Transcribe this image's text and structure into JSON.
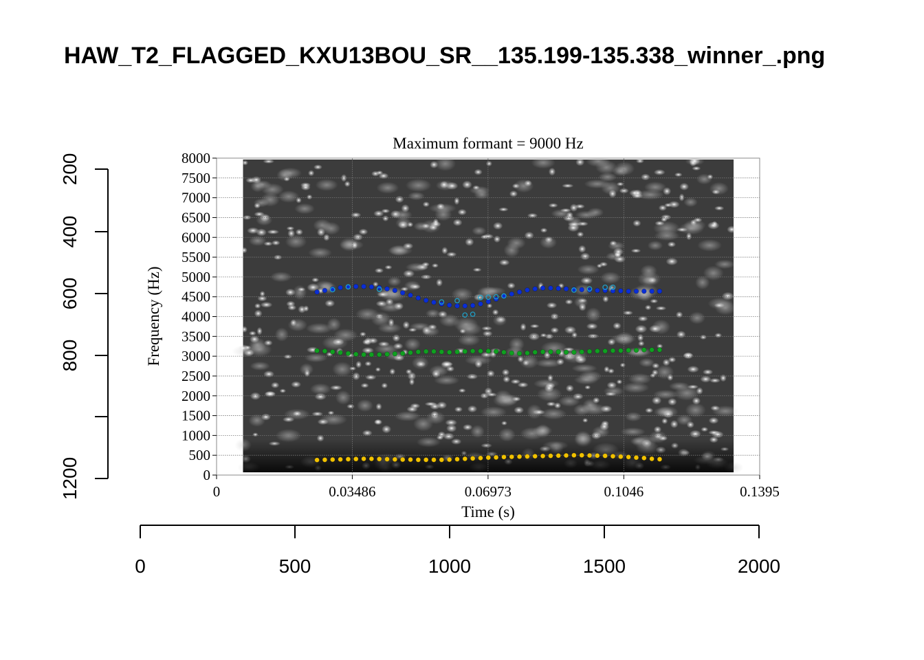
{
  "page": {
    "title": "HAW_T2_FLAGGED_KXU13BOU_SR__135.199-135.338_winner_.png"
  },
  "outer_axes": {
    "x_ticks": [
      "0",
      "500",
      "1000",
      "1500",
      "2000"
    ],
    "y_ticks": [
      "200",
      "400",
      "600",
      "800",
      "1200"
    ]
  },
  "chart_data": {
    "type": "scatter",
    "title": "Maximum formant = 9000 Hz",
    "xlabel": "Time (s)",
    "ylabel": "Frequency (Hz)",
    "xlim": [
      0,
      0.1395
    ],
    "ylim": [
      0,
      8000
    ],
    "x_ticks": [
      "0",
      "0.03486",
      "0.06973",
      "0.1046",
      "0.1395"
    ],
    "y_ticks": [
      "0",
      "500",
      "1000",
      "1500",
      "2000",
      "2500",
      "3000",
      "3500",
      "4000",
      "4500",
      "5000",
      "5500",
      "6000",
      "6500",
      "7000",
      "7500",
      "8000"
    ],
    "grid": true,
    "background": "spectrogram (grayscale)",
    "spectrogram_time_range": [
      0.0068,
      0.1328
    ],
    "series": [
      {
        "color": "#0a2ed6",
        "x": [
          0.0258,
          0.0278,
          0.0298,
          0.0318,
          0.0338,
          0.0358,
          0.0378,
          0.0398,
          0.0418,
          0.0438,
          0.0458,
          0.0478,
          0.0498,
          0.0518,
          0.0538,
          0.0558,
          0.0578,
          0.0598,
          0.0618,
          0.0638,
          0.0658,
          0.0678,
          0.0698,
          0.0718,
          0.0738,
          0.0758,
          0.0778,
          0.0798,
          0.0818,
          0.0838,
          0.0858,
          0.0878,
          0.0898,
          0.0918,
          0.0938,
          0.0958,
          0.0978,
          0.0998,
          0.1018,
          0.1038,
          0.1058,
          0.1078,
          0.1098,
          0.1118,
          0.1138
        ],
        "y": [
          4620,
          4660,
          4700,
          4730,
          4750,
          4760,
          4760,
          4750,
          4730,
          4700,
          4660,
          4600,
          4540,
          4470,
          4410,
          4360,
          4320,
          4290,
          4270,
          4270,
          4280,
          4320,
          4380,
          4440,
          4510,
          4570,
          4620,
          4670,
          4700,
          4720,
          4720,
          4710,
          4700,
          4690,
          4680,
          4670,
          4660,
          4660,
          4650,
          4650,
          4640,
          4640,
          4640,
          4640,
          4640
        ]
      },
      {
        "color": "#1fa0c8",
        "x": [
          0.0298,
          0.0338,
          0.0418,
          0.0578,
          0.0618,
          0.0638,
          0.0658,
          0.0678,
          0.0698,
          0.0718,
          0.0738,
          0.0918,
          0.0958,
          0.0998,
          0.1018
        ],
        "y": [
          4680,
          4750,
          4690,
          4370,
          4400,
          4040,
          4060,
          4480,
          4490,
          4500,
          4520,
          4670,
          4700,
          4740,
          4740
        ]
      },
      {
        "color": "#0fa020",
        "x": [
          0.0258,
          0.0278,
          0.0298,
          0.0318,
          0.0338,
          0.0358,
          0.0378,
          0.0398,
          0.0418,
          0.0438,
          0.0458,
          0.0478,
          0.0498,
          0.0518,
          0.0538,
          0.0558,
          0.0578,
          0.0598,
          0.0618,
          0.0638,
          0.0658,
          0.0678,
          0.0698,
          0.0718,
          0.0738,
          0.0758,
          0.0778,
          0.0798,
          0.0818,
          0.0838,
          0.0858,
          0.0878,
          0.0898,
          0.0918,
          0.0938,
          0.0958,
          0.0978,
          0.0998,
          0.1018,
          0.1038,
          0.1058,
          0.1078,
          0.1098,
          0.1118,
          0.1138
        ],
        "y": [
          3140,
          3130,
          3110,
          3090,
          3070,
          3050,
          3040,
          3040,
          3040,
          3050,
          3060,
          3070,
          3090,
          3110,
          3120,
          3120,
          3110,
          3100,
          3110,
          3120,
          3130,
          3130,
          3130,
          3120,
          3100,
          3080,
          3070,
          3080,
          3100,
          3110,
          3110,
          3110,
          3100,
          3100,
          3110,
          3120,
          3130,
          3130,
          3140,
          3140,
          3150,
          3150,
          3160,
          3160,
          3160
        ]
      },
      {
        "color": "#f2c200",
        "x": [
          0.0258,
          0.0278,
          0.0298,
          0.0318,
          0.0338,
          0.0358,
          0.0378,
          0.0398,
          0.0418,
          0.0438,
          0.0458,
          0.0478,
          0.0498,
          0.0518,
          0.0538,
          0.0558,
          0.0578,
          0.0598,
          0.0618,
          0.0638,
          0.0658,
          0.0678,
          0.0698,
          0.0718,
          0.0738,
          0.0758,
          0.0778,
          0.0798,
          0.0818,
          0.0838,
          0.0858,
          0.0878,
          0.0898,
          0.0918,
          0.0938,
          0.0958,
          0.0978,
          0.0998,
          0.1018,
          0.1038,
          0.1058,
          0.1078,
          0.1098,
          0.1118,
          0.1138
        ],
        "y": [
          380,
          385,
          390,
          395,
          400,
          405,
          410,
          410,
          405,
          400,
          395,
          390,
          390,
          385,
          385,
          385,
          385,
          390,
          400,
          410,
          420,
          430,
          440,
          445,
          455,
          460,
          465,
          470,
          475,
          480,
          485,
          490,
          495,
          500,
          500,
          495,
          490,
          485,
          475,
          465,
          455,
          440,
          430,
          410,
          400
        ]
      }
    ]
  }
}
